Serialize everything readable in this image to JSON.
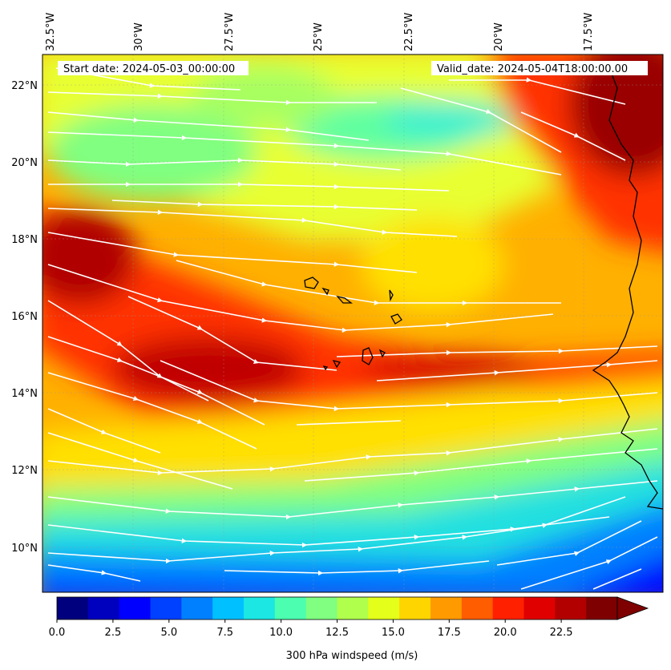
{
  "map": {
    "start_date_label": "Start date: 2024-05-03_00:00:00",
    "valid_date_label": "Valid_date: 2024-05-04T18:00:00.00",
    "lon_labels": [
      "32.5°W",
      "30°W",
      "27.5°W",
      "25°W",
      "22.5°W",
      "20°W",
      "17.5°W"
    ],
    "lat_labels": [
      "22°N",
      "20°N",
      "18°N",
      "16°N",
      "14°N",
      "12°N",
      "10°N"
    ],
    "layers": [
      "300 hPa windspeed field",
      "streamlines",
      "coastlines (Cape Verde islands, West Africa)"
    ]
  },
  "colorbar": {
    "title": "300 hPa windspeed (m/s)",
    "tick_labels": [
      "0.0",
      "2.5",
      "5.0",
      "7.5",
      "10.0",
      "12.5",
      "15.0",
      "17.5",
      "20.0",
      "22.5"
    ],
    "min": 0,
    "max": 25,
    "extend": "max",
    "colors": [
      "#00007f",
      "#0000bf",
      "#0000ff",
      "#0040ff",
      "#0080ff",
      "#00c0ff",
      "#1ce7e3",
      "#4cffb0",
      "#80ff80",
      "#b0ff4c",
      "#e4ff1a",
      "#ffd500",
      "#ff9a00",
      "#ff5d00",
      "#ff2000",
      "#e00000",
      "#b20000",
      "#7f0000"
    ]
  }
}
